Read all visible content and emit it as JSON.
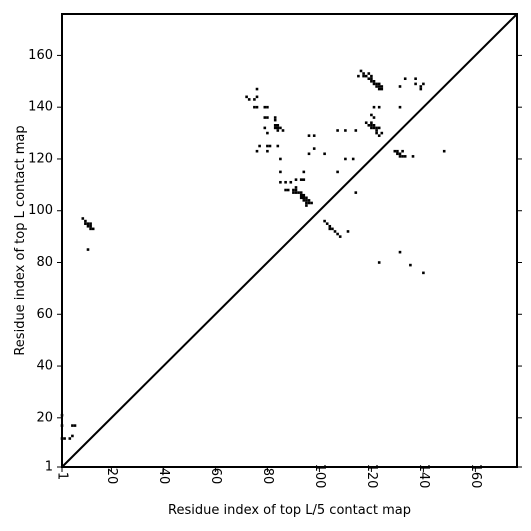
{
  "chart_data": {
    "type": "heatmap",
    "subtype": "contact-map-comparison",
    "xlabel": "Residue index of top L/5 contact map",
    "ylabel": "Residue index of top L contact map",
    "xlim": [
      1,
      176
    ],
    "ylim": [
      1,
      176
    ],
    "x_ticks": [
      1,
      20,
      40,
      60,
      80,
      100,
      120,
      140,
      160
    ],
    "y_ticks": [
      1,
      20,
      40,
      60,
      80,
      100,
      120,
      140,
      160
    ],
    "grid": false,
    "diagonal_line": true,
    "mark_color": "#000000",
    "lower_triangle_contacts": [
      [
        1,
        21
      ],
      [
        1,
        17
      ],
      [
        1,
        12
      ],
      [
        2,
        12
      ],
      [
        5,
        17
      ],
      [
        6,
        17
      ],
      [
        5,
        13
      ],
      [
        4,
        12
      ]
    ],
    "upper_triangle_contacts": [
      [
        9,
        97
      ],
      [
        10,
        96
      ],
      [
        10,
        95
      ],
      [
        11,
        95
      ],
      [
        11,
        94
      ],
      [
        12,
        95
      ],
      [
        12,
        94
      ],
      [
        12,
        93
      ],
      [
        13,
        93
      ],
      [
        11,
        85
      ],
      [
        72,
        144
      ],
      [
        73,
        143
      ],
      [
        75,
        143
      ],
      [
        75,
        140
      ],
      [
        76,
        147
      ],
      [
        76,
        144
      ],
      [
        76,
        140
      ],
      [
        76,
        123
      ],
      [
        77,
        125
      ],
      [
        79,
        140
      ],
      [
        79,
        136
      ],
      [
        79,
        132
      ],
      [
        80,
        140
      ],
      [
        80,
        136
      ],
      [
        80,
        130
      ],
      [
        80,
        125
      ],
      [
        80,
        123
      ],
      [
        81,
        125
      ],
      [
        83,
        136
      ],
      [
        83,
        135
      ],
      [
        83,
        133
      ],
      [
        83,
        132
      ],
      [
        84,
        133
      ],
      [
        84,
        132
      ],
      [
        84,
        131
      ],
      [
        84,
        125
      ],
      [
        85,
        132
      ],
      [
        85,
        120
      ],
      [
        85,
        115
      ],
      [
        85,
        111
      ],
      [
        86,
        131
      ],
      [
        87,
        111
      ],
      [
        87,
        108
      ],
      [
        88,
        108
      ],
      [
        89,
        111
      ],
      [
        90,
        108
      ],
      [
        90,
        107
      ],
      [
        91,
        109
      ],
      [
        91,
        108
      ],
      [
        91,
        107
      ],
      [
        91,
        112
      ],
      [
        92,
        107
      ],
      [
        93,
        107
      ],
      [
        93,
        106
      ],
      [
        93,
        105
      ],
      [
        93,
        112
      ],
      [
        94,
        106
      ],
      [
        94,
        105
      ],
      [
        94,
        104
      ],
      [
        94,
        115
      ],
      [
        94,
        112
      ],
      [
        95,
        105
      ],
      [
        95,
        104
      ],
      [
        95,
        103
      ],
      [
        95,
        102
      ],
      [
        96,
        104
      ],
      [
        96,
        103
      ],
      [
        96,
        129
      ],
      [
        96,
        122
      ],
      [
        97,
        103
      ],
      [
        98,
        129
      ],
      [
        98,
        124
      ],
      [
        102,
        122
      ],
      [
        102,
        96
      ],
      [
        103,
        95
      ],
      [
        104,
        94
      ],
      [
        104,
        93
      ],
      [
        105,
        93
      ],
      [
        106,
        92
      ],
      [
        107,
        91
      ],
      [
        108,
        90
      ],
      [
        107,
        131
      ],
      [
        107,
        115
      ],
      [
        110,
        131
      ],
      [
        110,
        120
      ],
      [
        111,
        92
      ],
      [
        113,
        120
      ],
      [
        114,
        131
      ],
      [
        114,
        107
      ],
      [
        115,
        152
      ],
      [
        116,
        154
      ],
      [
        117,
        153
      ],
      [
        117,
        152
      ],
      [
        118,
        152
      ],
      [
        118,
        134
      ],
      [
        119,
        153
      ],
      [
        119,
        151
      ],
      [
        119,
        133
      ],
      [
        120,
        152
      ],
      [
        120,
        151
      ],
      [
        120,
        150
      ],
      [
        120,
        137
      ],
      [
        120,
        134
      ],
      [
        120,
        133
      ],
      [
        120,
        132
      ],
      [
        121,
        150
      ],
      [
        121,
        149
      ],
      [
        121,
        140
      ],
      [
        121,
        136
      ],
      [
        121,
        133
      ],
      [
        121,
        132
      ],
      [
        122,
        149
      ],
      [
        122,
        148
      ],
      [
        122,
        132
      ],
      [
        122,
        131
      ],
      [
        122,
        130
      ],
      [
        123,
        149
      ],
      [
        123,
        148
      ],
      [
        123,
        147
      ],
      [
        123,
        140
      ],
      [
        123,
        132
      ],
      [
        123,
        129
      ],
      [
        123,
        80
      ],
      [
        124,
        148
      ],
      [
        124,
        147
      ],
      [
        124,
        130
      ],
      [
        129,
        123
      ],
      [
        130,
        123
      ],
      [
        130,
        122
      ],
      [
        131,
        122
      ],
      [
        131,
        121
      ],
      [
        131,
        140
      ],
      [
        131,
        148
      ],
      [
        131,
        84
      ],
      [
        132,
        121
      ],
      [
        132,
        123
      ],
      [
        133,
        121
      ],
      [
        133,
        151
      ],
      [
        135,
        79
      ],
      [
        136,
        121
      ],
      [
        137,
        151
      ],
      [
        137,
        149
      ],
      [
        139,
        148
      ],
      [
        139,
        147
      ],
      [
        140,
        149
      ],
      [
        140,
        76
      ],
      [
        148,
        123
      ]
    ]
  }
}
